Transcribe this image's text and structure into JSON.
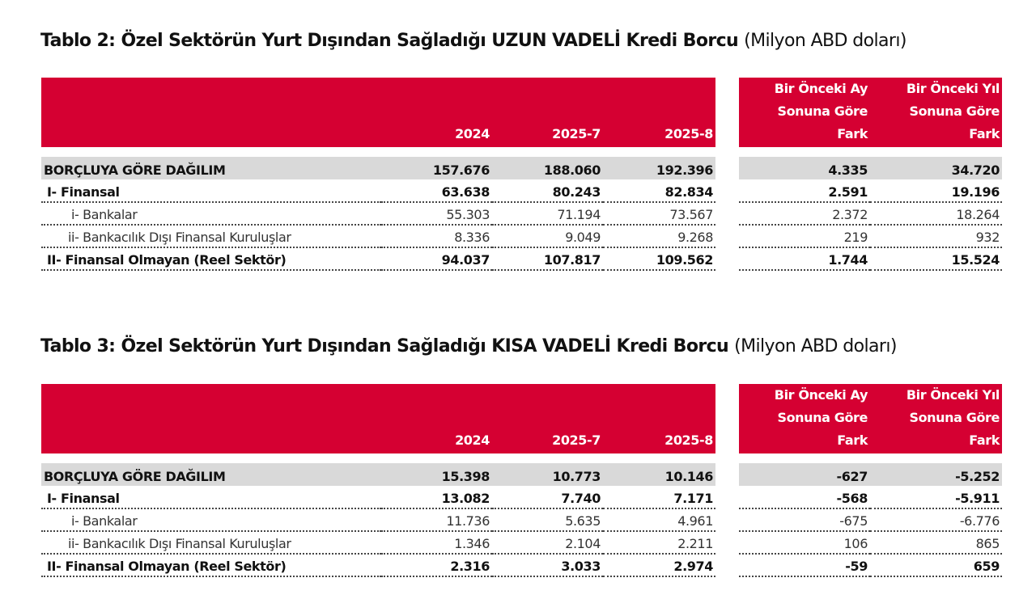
{
  "tables": [
    {
      "title": "Tablo 2: Özel Sektörün Yurt Dışından Sağladığı UZUN VADELİ Kredi Borcu",
      "unit": "(Milyon ABD doları)",
      "headers": [
        "2024",
        "2025-7",
        "2025-8"
      ],
      "diff_headers": [
        [
          "Bir Önceki Ay",
          "Sonuna Göre",
          "Fark"
        ],
        [
          "Bir Önceki Yıl",
          "Sonuna Göre",
          "Fark"
        ]
      ],
      "rows": [
        {
          "label": "BORÇLUYA GÖRE DAĞILIM",
          "values": [
            "157.676",
            "188.060",
            "192.396"
          ],
          "diffs": [
            "4.335",
            "34.720"
          ]
        },
        {
          "label": "I- Finansal",
          "values": [
            "63.638",
            "80.243",
            "82.834"
          ],
          "diffs": [
            "2.591",
            "19.196"
          ]
        },
        {
          "label": "i- Bankalar",
          "values": [
            "55.303",
            "71.194",
            "73.567"
          ],
          "diffs": [
            "2.372",
            "18.264"
          ]
        },
        {
          "label": "ii- Bankacılık Dışı Finansal Kuruluşlar",
          "values": [
            "8.336",
            "9.049",
            "9.268"
          ],
          "diffs": [
            "219",
            "932"
          ]
        },
        {
          "label": "II- Finansal Olmayan (Reel Sektör)",
          "values": [
            "94.037",
            "107.817",
            "109.562"
          ],
          "diffs": [
            "1.744",
            "15.524"
          ]
        }
      ]
    },
    {
      "title": "Tablo 3: Özel Sektörün Yurt Dışından Sağladığı KISA VADELİ Kredi Borcu",
      "unit": "(Milyon ABD doları)",
      "headers": [
        "2024",
        "2025-7",
        "2025-8"
      ],
      "diff_headers": [
        [
          "Bir Önceki Ay",
          "Sonuna Göre",
          "Fark"
        ],
        [
          "Bir Önceki Yıl",
          "Sonuna Göre",
          "Fark"
        ]
      ],
      "rows": [
        {
          "label": "BORÇLUYA GÖRE DAĞILIM",
          "values": [
            "15.398",
            "10.773",
            "10.146"
          ],
          "diffs": [
            "-627",
            "-5.252"
          ]
        },
        {
          "label": "I- Finansal",
          "values": [
            "13.082",
            "7.740",
            "7.171"
          ],
          "diffs": [
            "-568",
            "-5.911"
          ]
        },
        {
          "label": "i- Bankalar",
          "values": [
            "11.736",
            "5.635",
            "4.961"
          ],
          "diffs": [
            "-675",
            "-6.776"
          ]
        },
        {
          "label": "ii- Bankacılık Dışı Finansal Kuruluşlar",
          "values": [
            "1.346",
            "2.104",
            "2.211"
          ],
          "diffs": [
            "106",
            "865"
          ]
        },
        {
          "label": "II- Finansal Olmayan (Reel Sektör)",
          "values": [
            "2.316",
            "3.033",
            "2.974"
          ],
          "diffs": [
            "-59",
            "659"
          ]
        }
      ]
    }
  ],
  "colors": {
    "header": "#d50032",
    "total_row": "#d9d9d9"
  }
}
